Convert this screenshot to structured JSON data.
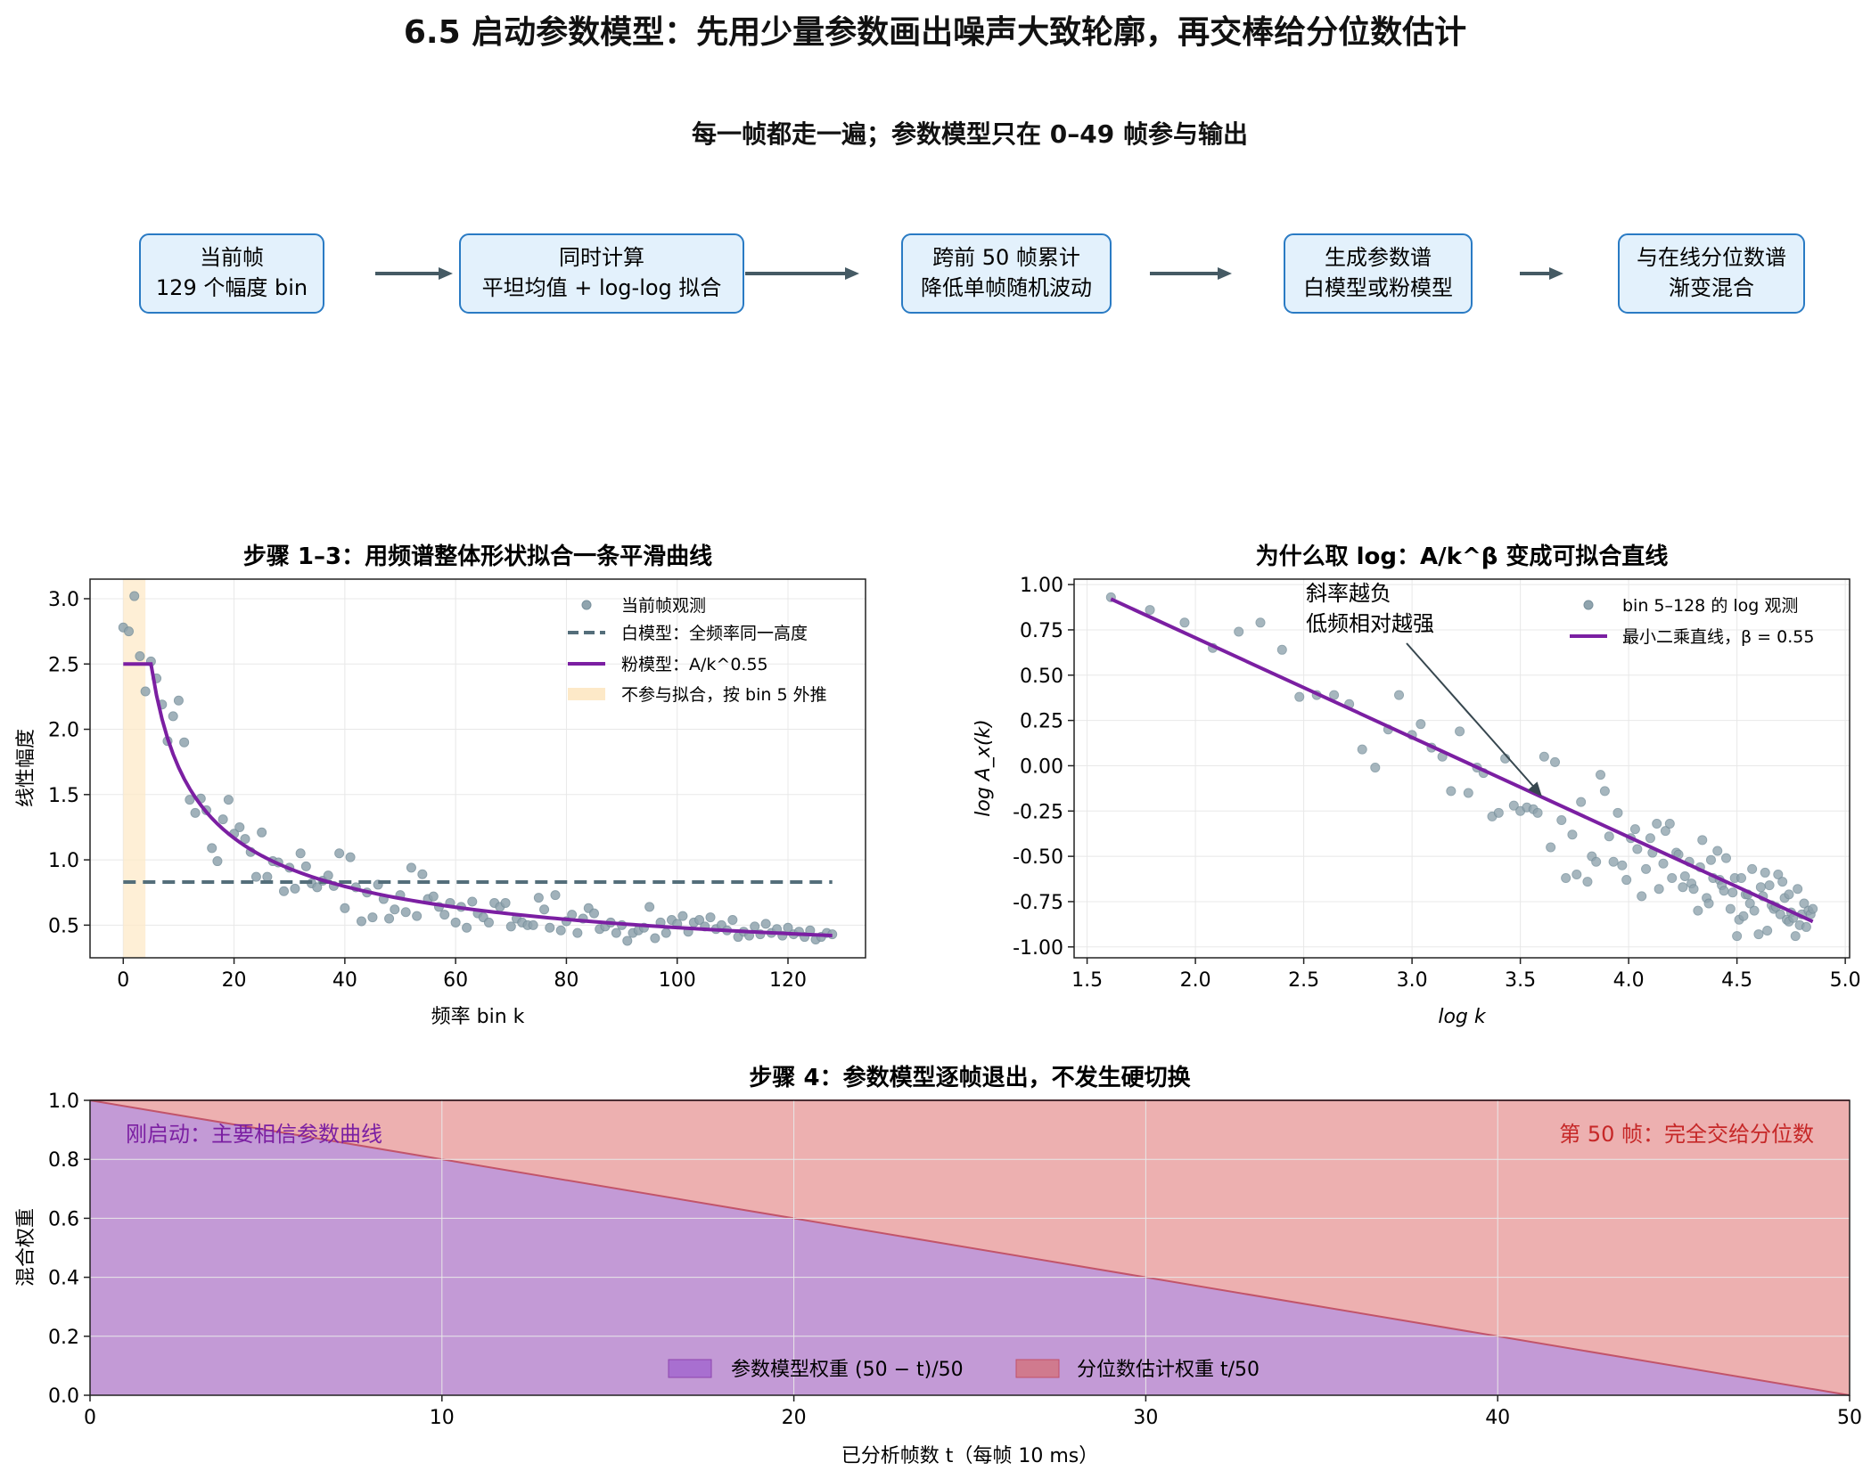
{
  "title": "6.5 启动参数模型：先用少量参数画出噪声大致轮廓，再交棒给分位数估计",
  "colors": {
    "flow_box_fill": "#e3f1fc",
    "flow_box_border": "#2a7bc4",
    "arrow": "#455a64",
    "scatter": "#90a4ae",
    "white_model": "#546e7a",
    "pink_model": "#7b1fa2",
    "excluded_band": "#fde9c8",
    "param_weight_fill": "#c39ad6",
    "quantile_weight_fill": "#edb0b0",
    "quantile_text": "#c62828",
    "param_text": "#7b1fa2",
    "grid": "#e6e6e6"
  },
  "flow": {
    "title": "每一帧都走一遍；参数模型只在 0–49 帧参与输出",
    "boxes": [
      {
        "line1": "当前帧",
        "line2": "129 个幅度 bin"
      },
      {
        "line1": "同时计算",
        "line2": "平坦均值 + log-log 拟合"
      },
      {
        "line1": "跨前 50 帧累计",
        "line2": "降低单帧随机波动"
      },
      {
        "line1": "生成参数谱",
        "line2": "白模型或粉模型"
      },
      {
        "line1": "与在线分位数谱",
        "line2": "渐变混合"
      }
    ]
  },
  "chart_data": [
    {
      "type": "scatter",
      "title": "步骤 1–3：用频谱整体形状拟合一条平滑曲线",
      "xlabel": "频率 bin k",
      "ylabel": "线性幅度",
      "xlim": [
        -6,
        134
      ],
      "ylim": [
        0.25,
        3.15
      ],
      "xticks": [
        0,
        20,
        40,
        60,
        80,
        100,
        120
      ],
      "yticks": [
        0.5,
        1.0,
        1.5,
        2.0,
        2.5,
        3.0
      ],
      "grid": true,
      "legend_position": "top-right",
      "legend": [
        "当前帧观测",
        "白模型：全频率同一高度",
        "粉模型：A/k^0.55",
        "不参与拟合，按 bin 5 外推"
      ],
      "excluded_band": [
        0,
        4
      ],
      "white_model_level": 0.83,
      "pink_model": {
        "A": 6.2,
        "beta": 0.55,
        "flat_until_bin": 5,
        "flat_value": 2.5,
        "x_end": 128
      },
      "observations": {
        "x": [
          0,
          1,
          2,
          3,
          4,
          5,
          6,
          7,
          8,
          9,
          10,
          11,
          12,
          13,
          14,
          15,
          16,
          17,
          18,
          19,
          20,
          21,
          22,
          23,
          24,
          25,
          26,
          27,
          28,
          29,
          30,
          31,
          32,
          33,
          34,
          35,
          36,
          37,
          38,
          39,
          40,
          41,
          42,
          43,
          44,
          45,
          46,
          47,
          48,
          49,
          50,
          51,
          52,
          53,
          54,
          55,
          56,
          57,
          58,
          59,
          60,
          61,
          62,
          63,
          64,
          65,
          66,
          67,
          68,
          69,
          70,
          71,
          72,
          73,
          74,
          75,
          76,
          77,
          78,
          79,
          80,
          81,
          82,
          83,
          84,
          85,
          86,
          87,
          88,
          89,
          90,
          91,
          92,
          93,
          94,
          95,
          96,
          97,
          98,
          99,
          100,
          101,
          102,
          103,
          104,
          105,
          106,
          107,
          108,
          109,
          110,
          111,
          112,
          113,
          114,
          115,
          116,
          117,
          118,
          119,
          120,
          121,
          122,
          123,
          124,
          125,
          126,
          127,
          128
        ],
        "y": [
          2.78,
          2.75,
          3.02,
          2.56,
          2.29,
          2.52,
          2.39,
          2.19,
          1.91,
          2.1,
          2.22,
          1.9,
          1.46,
          1.36,
          1.47,
          1.38,
          1.09,
          0.99,
          1.31,
          1.46,
          1.2,
          1.25,
          1.16,
          1.06,
          0.87,
          1.21,
          0.87,
          0.99,
          0.98,
          0.76,
          0.94,
          0.78,
          1.05,
          0.95,
          0.82,
          0.79,
          0.84,
          0.88,
          0.8,
          1.05,
          0.63,
          1.02,
          0.79,
          0.53,
          0.75,
          0.56,
          0.81,
          0.7,
          0.55,
          0.62,
          0.73,
          0.6,
          0.94,
          0.57,
          0.89,
          0.7,
          0.72,
          0.64,
          0.58,
          0.67,
          0.52,
          0.64,
          0.48,
          0.68,
          0.59,
          0.56,
          0.52,
          0.67,
          0.64,
          0.67,
          0.49,
          0.55,
          0.52,
          0.5,
          0.5,
          0.71,
          0.62,
          0.48,
          0.73,
          0.46,
          0.53,
          0.58,
          0.44,
          0.55,
          0.63,
          0.59,
          0.47,
          0.49,
          0.52,
          0.44,
          0.5,
          0.38,
          0.44,
          0.46,
          0.48,
          0.64,
          0.4,
          0.52,
          0.44,
          0.54,
          0.51,
          0.57,
          0.45,
          0.52,
          0.54,
          0.49,
          0.56,
          0.47,
          0.5,
          0.46,
          0.54,
          0.41,
          0.45,
          0.42,
          0.49,
          0.43,
          0.51,
          0.44,
          0.47,
          0.42,
          0.48,
          0.43,
          0.45,
          0.41,
          0.46,
          0.39,
          0.41,
          0.44,
          0.43
        ]
      }
    },
    {
      "type": "scatter",
      "title": "为什么取 log：A/k^β 变成可拟合直线",
      "xlabel": "log k",
      "ylabel": "log A_x(k)",
      "xlim": [
        1.44,
        5.02
      ],
      "ylim": [
        -1.06,
        1.03
      ],
      "xticks": [
        1.5,
        2.0,
        2.5,
        3.0,
        3.5,
        4.0,
        4.5,
        5.0
      ],
      "yticks": [
        -1.0,
        -0.75,
        -0.5,
        -0.25,
        0.0,
        0.25,
        0.5,
        0.75,
        1.0
      ],
      "grid": true,
      "legend_position": "top-right",
      "legend": [
        "bin 5–128 的 log 观测",
        "最小二乘直线，β = 0.55"
      ],
      "annotation": "斜率越负\n低频相对越强",
      "annotation_arrow_target": [
        3.6,
        -0.17
      ],
      "fit_line": {
        "x": [
          1.61,
          4.85
        ],
        "y": [
          0.92,
          -0.86
        ]
      },
      "observations": {
        "x": [
          1.61,
          1.79,
          1.95,
          2.08,
          2.2,
          2.3,
          2.4,
          2.48,
          2.56,
          2.64,
          2.71,
          2.77,
          2.83,
          2.89,
          2.94,
          3.0,
          3.04,
          3.09,
          3.14,
          3.18,
          3.22,
          3.26,
          3.3,
          3.33,
          3.37,
          3.4,
          3.43,
          3.47,
          3.5,
          3.53,
          3.56,
          3.58,
          3.61,
          3.64,
          3.66,
          3.69,
          3.71,
          3.74,
          3.76,
          3.78,
          3.81,
          3.83,
          3.85,
          3.87,
          3.89,
          3.91,
          3.93,
          3.95,
          3.97,
          3.99,
          4.01,
          4.03,
          4.04,
          4.06,
          4.08,
          4.1,
          4.11,
          4.13,
          4.14,
          4.16,
          4.17,
          4.19,
          4.2,
          4.22,
          4.23,
          4.25,
          4.26,
          4.28,
          4.29,
          4.3,
          4.32,
          4.33,
          4.34,
          4.36,
          4.37,
          4.38,
          4.39,
          4.41,
          4.42,
          4.43,
          4.44,
          4.45,
          4.47,
          4.48,
          4.49,
          4.5,
          4.51,
          4.52,
          4.53,
          4.54,
          4.55,
          4.56,
          4.57,
          4.58,
          4.6,
          4.61,
          4.62,
          4.63,
          4.64,
          4.65,
          4.66,
          4.67,
          4.68,
          4.69,
          4.7,
          4.71,
          4.72,
          4.73,
          4.74,
          4.74,
          4.75,
          4.76,
          4.77,
          4.78,
          4.79,
          4.8,
          4.81,
          4.82,
          4.83,
          4.84,
          4.85
        ],
        "y": [
          0.93,
          0.86,
          0.79,
          0.65,
          0.74,
          0.79,
          0.64,
          0.38,
          0.39,
          0.39,
          0.34,
          0.09,
          -0.01,
          0.2,
          0.39,
          0.17,
          0.23,
          0.1,
          0.05,
          -0.14,
          0.19,
          -0.15,
          -0.01,
          -0.04,
          -0.28,
          -0.26,
          0.04,
          -0.22,
          -0.25,
          -0.23,
          -0.24,
          -0.26,
          0.05,
          -0.45,
          0.02,
          -0.3,
          -0.62,
          -0.38,
          -0.6,
          -0.2,
          -0.64,
          -0.5,
          -0.53,
          -0.05,
          -0.14,
          -0.39,
          -0.53,
          -0.26,
          -0.55,
          -0.63,
          -0.4,
          -0.35,
          -0.46,
          -0.72,
          -0.57,
          -0.4,
          -0.48,
          -0.32,
          -0.68,
          -0.54,
          -0.36,
          -0.32,
          -0.62,
          -0.48,
          -0.49,
          -0.67,
          -0.61,
          -0.53,
          -0.65,
          -0.68,
          -0.8,
          -0.56,
          -0.41,
          -0.73,
          -0.76,
          -0.52,
          -0.62,
          -0.47,
          -0.63,
          -0.66,
          -0.69,
          -0.51,
          -0.79,
          -0.7,
          -0.62,
          -0.94,
          -0.85,
          -0.62,
          -0.83,
          -0.71,
          -0.71,
          -0.76,
          -0.57,
          -0.8,
          -0.93,
          -0.67,
          -0.72,
          -0.59,
          -0.91,
          -0.66,
          -0.77,
          -0.79,
          -0.78,
          -0.6,
          -0.82,
          -0.64,
          -0.73,
          -0.85,
          -0.86,
          -0.71,
          -0.81,
          -0.84,
          -0.94,
          -0.68,
          -0.88,
          -0.82,
          -0.76,
          -0.89,
          -0.8,
          -0.82,
          -0.79
        ]
      }
    },
    {
      "type": "area",
      "title": "步骤 4：参数模型逐帧退出，不发生硬切换",
      "xlabel": "已分析帧数 t（每帧 10 ms）",
      "ylabel": "混合权重",
      "xlim": [
        0,
        50
      ],
      "ylim": [
        0,
        1.0
      ],
      "xticks": [
        0,
        10,
        20,
        30,
        40,
        50
      ],
      "yticks": [
        0.0,
        0.2,
        0.4,
        0.6,
        0.8,
        1.0
      ],
      "grid": true,
      "legend_position": "bottom-center",
      "x": [
        0,
        50
      ],
      "series": [
        {
          "name": "参数模型权重 (50 − t)/50",
          "values": [
            1.0,
            0.0
          ]
        },
        {
          "name": "分位数估计权重 t/50",
          "values": [
            0.0,
            1.0
          ]
        }
      ],
      "annotations": [
        "刚启动：主要相信参数曲线",
        "第 50 帧：完全交给分位数"
      ]
    }
  ]
}
